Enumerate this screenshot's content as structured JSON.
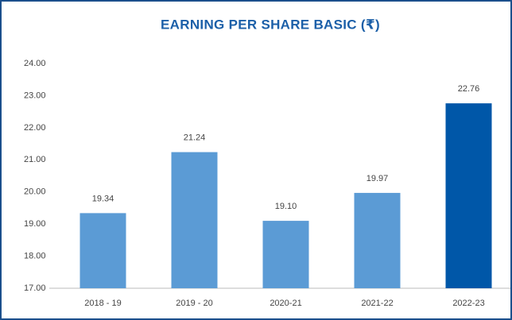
{
  "chart_data": {
    "type": "bar",
    "title": "EARNING PER SHARE BASIC (₹)",
    "categories": [
      "2018 - 19",
      "2019 - 20",
      "2020-21",
      "2021-22",
      "2022-23"
    ],
    "values": [
      19.34,
      21.24,
      19.1,
      19.97,
      22.76
    ],
    "value_labels": [
      "19.34",
      "21.24",
      "19.10",
      "19.97",
      "22.76"
    ],
    "colors": [
      "#5b9bd5",
      "#5b9bd5",
      "#5b9bd5",
      "#5b9bd5",
      "#0057a8"
    ],
    "ylim": [
      17,
      24
    ],
    "yticks": [
      {
        "value": 17,
        "label": "17.00"
      },
      {
        "value": 18,
        "label": "18.00"
      },
      {
        "value": 19,
        "label": "19.00"
      },
      {
        "value": 20,
        "label": "20.00"
      },
      {
        "value": 21,
        "label": "21.00"
      },
      {
        "value": 22,
        "label": "22.00"
      },
      {
        "value": 23,
        "label": "23.00"
      },
      {
        "value": 24,
        "label": "24.00"
      }
    ],
    "grid": false
  }
}
